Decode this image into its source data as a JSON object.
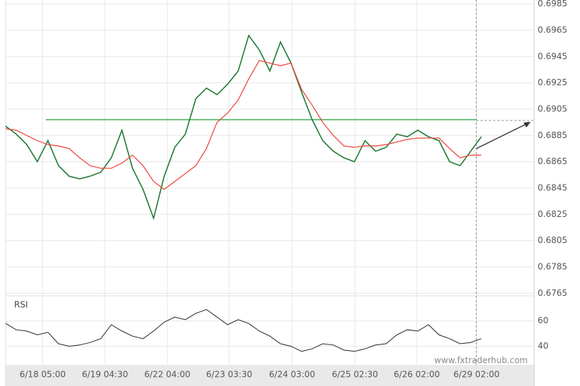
{
  "chart_data": {
    "type": "line",
    "x": [
      0,
      2,
      4,
      6,
      8,
      10,
      12,
      14,
      16,
      18,
      20,
      22,
      24,
      26,
      28,
      30,
      32,
      34,
      36,
      38,
      40,
      42,
      44,
      46,
      48,
      50,
      52,
      54,
      56,
      58,
      60,
      62,
      64,
      66,
      68,
      70,
      72,
      74,
      76,
      78,
      80,
      82,
      84,
      86,
      88,
      90
    ],
    "xlim": [
      0,
      100
    ],
    "xticks": [
      {
        "value": 7,
        "label": "6/18 05:00"
      },
      {
        "value": 18.8,
        "label": "6/19 04:30"
      },
      {
        "value": 30.6,
        "label": "6/22 04:00"
      },
      {
        "value": 42.3,
        "label": "6/23 03:30"
      },
      {
        "value": 54.2,
        "label": "6/24 03:00"
      },
      {
        "value": 66.1,
        "label": "6/25 02:30"
      },
      {
        "value": 77.8,
        "label": "6/26 02:00"
      },
      {
        "value": 89.1,
        "label": "6/29 02:00"
      }
    ],
    "ylim": [
      0.6763,
      0.6988
    ],
    "yticks": [
      0.6765,
      0.6785,
      0.6805,
      0.6825,
      0.6845,
      0.6865,
      0.6885,
      0.6905,
      0.6925,
      0.6945,
      0.6965,
      0.6985
    ],
    "grid": true,
    "level": 0.6897,
    "level_color": "#6abf7b",
    "series": [
      {
        "color": "#1f7a34",
        "values": [
          0.6892,
          0.6886,
          0.6878,
          0.6865,
          0.6881,
          0.6862,
          0.6854,
          0.6852,
          0.6854,
          0.6857,
          0.6868,
          0.6889,
          0.686,
          0.6844,
          0.6822,
          0.6854,
          0.6876,
          0.6886,
          0.6913,
          0.6921,
          0.6916,
          0.6924,
          0.6934,
          0.6961,
          0.695,
          0.6934,
          0.6956,
          0.694,
          0.6918,
          0.6897,
          0.6881,
          0.6873,
          0.6868,
          0.6865,
          0.6881,
          0.6873,
          0.6876,
          0.6886,
          0.6884,
          0.6889,
          0.6884,
          0.6881,
          0.6865,
          0.6862,
          0.6873,
          0.6884
        ]
      },
      {
        "color": "#ee4a3f",
        "values": [
          0.689,
          0.6889,
          0.6885,
          0.6881,
          0.6878,
          0.6877,
          0.6875,
          0.6868,
          0.6862,
          0.686,
          0.686,
          0.6864,
          0.687,
          0.6862,
          0.685,
          0.6844,
          0.685,
          0.6856,
          0.6862,
          0.6875,
          0.6895,
          0.6902,
          0.6912,
          0.6928,
          0.6942,
          0.694,
          0.6938,
          0.694,
          0.692,
          0.6908,
          0.6895,
          0.6885,
          0.6877,
          0.6876,
          0.6877,
          0.6877,
          0.6878,
          0.688,
          0.6882,
          0.6883,
          0.6883,
          0.6883,
          0.6875,
          0.6868,
          0.687,
          0.687
        ]
      }
    ],
    "rsi": {
      "label": "RSI",
      "color": "#222222",
      "ylim": [
        27,
        77
      ],
      "yticks": [
        40,
        60
      ],
      "values": [
        58,
        53,
        52,
        49,
        51,
        42,
        40,
        41,
        43,
        46,
        57,
        52,
        48,
        46,
        52,
        59,
        63,
        61,
        66,
        69,
        63,
        57,
        61,
        58,
        52,
        48,
        42,
        40,
        36,
        38,
        42,
        41,
        37,
        36,
        38,
        41,
        42,
        49,
        53,
        52,
        57,
        49,
        46,
        42,
        43,
        46
      ]
    },
    "watermark": "www.fxtraderhub.com"
  }
}
